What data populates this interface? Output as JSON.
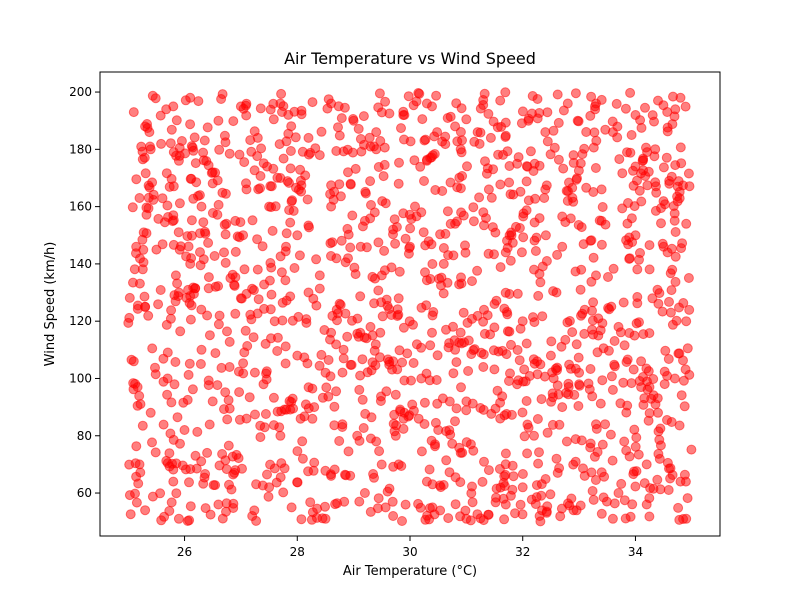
{
  "chart_data": {
    "type": "scatter",
    "title": "Air Temperature vs Wind Speed",
    "xlabel": "Air Temperature (°C)",
    "ylabel": "Wind Speed (km/h)",
    "xlim": [
      24.5,
      35.5
    ],
    "ylim": [
      45,
      207
    ],
    "xticks": [
      26,
      28,
      30,
      32,
      34
    ],
    "yticks": [
      60,
      80,
      100,
      120,
      140,
      160,
      180,
      200
    ],
    "grid": false,
    "marker_color": "#ff0000",
    "marker_alpha": 0.5,
    "series": [
      {
        "x_range": [
          25,
          35
        ],
        "y_range": [
          50,
          200
        ],
        "points": [
          [
            25.1,
            193.0
          ],
          [
            25.3,
            188.0
          ],
          [
            25.8,
            195.0
          ],
          [
            26.1,
            198.0
          ],
          [
            26.6,
            190.0
          ],
          [
            27.0,
            195.0
          ],
          [
            27.3,
            184.0
          ],
          [
            27.7,
            196.0
          ],
          [
            28.2,
            184.0
          ],
          [
            28.6,
            196.0
          ],
          [
            29.0,
            190.0
          ],
          [
            29.4,
            186.0
          ],
          [
            29.9,
            192.0
          ],
          [
            30.3,
            196.0
          ],
          [
            30.8,
            188.0
          ],
          [
            31.2,
            186.0
          ],
          [
            31.6,
            197.0
          ],
          [
            32.1,
            190.0
          ],
          [
            32.4,
            186.0
          ],
          [
            32.8,
            196.0
          ],
          [
            33.3,
            196.0
          ],
          [
            33.6,
            186.0
          ],
          [
            34.0,
            192.0
          ],
          [
            34.4,
            197.0
          ],
          [
            34.8,
            198.0
          ],
          [
            25.4,
            180.0
          ],
          [
            25.9,
            176.0
          ],
          [
            26.5,
            172.0
          ],
          [
            27.1,
            166.0
          ],
          [
            27.7,
            170.0
          ],
          [
            28.4,
            178.0
          ],
          [
            28.9,
            172.0
          ],
          [
            29.4,
            180.0
          ],
          [
            29.8,
            168.0
          ],
          [
            30.3,
            176.0
          ],
          [
            30.9,
            180.0
          ],
          [
            31.4,
            166.0
          ],
          [
            31.9,
            175.0
          ],
          [
            32.4,
            166.0
          ],
          [
            32.9,
            178.0
          ],
          [
            33.4,
            166.0
          ],
          [
            34.0,
            174.0
          ],
          [
            34.6,
            168.0
          ],
          [
            25.2,
            163.0
          ],
          [
            25.8,
            157.0
          ],
          [
            26.3,
            160.0
          ],
          [
            26.9,
            155.0
          ],
          [
            27.5,
            160.0
          ],
          [
            28.0,
            150.0
          ],
          [
            28.6,
            160.0
          ],
          [
            29.2,
            155.0
          ],
          [
            29.7,
            152.0
          ],
          [
            30.2,
            158.0
          ],
          [
            30.8,
            154.0
          ],
          [
            31.3,
            158.0
          ],
          [
            31.8,
            150.0
          ],
          [
            32.3,
            156.0
          ],
          [
            32.8,
            162.0
          ],
          [
            33.4,
            155.0
          ],
          [
            34.0,
            150.0
          ],
          [
            34.9,
            154.0
          ],
          [
            25.5,
            145.0
          ],
          [
            26.1,
            140.0
          ],
          [
            26.7,
            144.0
          ],
          [
            27.3,
            138.0
          ],
          [
            27.8,
            146.0
          ],
          [
            28.4,
            136.0
          ],
          [
            28.9,
            142.0
          ],
          [
            29.5,
            136.0
          ],
          [
            30.0,
            146.0
          ],
          [
            30.6,
            140.0
          ],
          [
            31.1,
            134.0
          ],
          [
            31.7,
            144.0
          ],
          [
            32.2,
            138.0
          ],
          [
            32.7,
            146.0
          ],
          [
            33.3,
            136.0
          ],
          [
            33.9,
            142.0
          ],
          [
            34.5,
            146.0
          ],
          [
            25.3,
            125.0
          ],
          [
            25.9,
            130.0
          ],
          [
            26.4,
            122.0
          ],
          [
            27.0,
            128.0
          ],
          [
            27.6,
            120.0
          ],
          [
            28.2,
            130.0
          ],
          [
            28.7,
            124.0
          ],
          [
            29.3,
            118.0
          ],
          [
            29.8,
            128.0
          ],
          [
            30.4,
            122.0
          ],
          [
            30.9,
            116.0
          ],
          [
            31.5,
            126.0
          ],
          [
            32.0,
            120.0
          ],
          [
            32.6,
            130.0
          ],
          [
            33.1,
            124.0
          ],
          [
            33.7,
            118.0
          ],
          [
            34.3,
            128.0
          ],
          [
            34.9,
            120.0
          ],
          [
            25.1,
            106.0
          ],
          [
            25.7,
            100.0
          ],
          [
            26.3,
            110.0
          ],
          [
            26.8,
            104.0
          ],
          [
            27.4,
            98.0
          ],
          [
            28.0,
            108.0
          ],
          [
            28.5,
            102.0
          ],
          [
            29.1,
            96.0
          ],
          [
            29.7,
            106.0
          ],
          [
            30.2,
            100.0
          ],
          [
            30.8,
            110.0
          ],
          [
            31.3,
            104.0
          ],
          [
            31.9,
            98.0
          ],
          [
            32.5,
            108.0
          ],
          [
            33.0,
            102.0
          ],
          [
            33.6,
            96.0
          ],
          [
            34.1,
            106.0
          ],
          [
            34.7,
            100.0
          ],
          [
            25.4,
            88.0
          ],
          [
            26.0,
            82.0
          ],
          [
            26.5,
            92.0
          ],
          [
            27.1,
            86.0
          ],
          [
            27.7,
            80.0
          ],
          [
            28.3,
            90.0
          ],
          [
            28.8,
            84.0
          ],
          [
            29.4,
            78.0
          ],
          [
            29.9,
            88.0
          ],
          [
            30.5,
            82.0
          ],
          [
            31.0,
            92.0
          ],
          [
            31.6,
            86.0
          ],
          [
            32.2,
            80.0
          ],
          [
            32.7,
            90.0
          ],
          [
            33.3,
            84.0
          ],
          [
            33.8,
            78.0
          ],
          [
            34.4,
            88.0
          ],
          [
            25.2,
            70.0
          ],
          [
            25.8,
            64.0
          ],
          [
            26.4,
            74.0
          ],
          [
            26.9,
            68.0
          ],
          [
            27.5,
            62.0
          ],
          [
            28.1,
            72.0
          ],
          [
            28.6,
            66.0
          ],
          [
            29.2,
            60.0
          ],
          [
            29.8,
            70.0
          ],
          [
            30.3,
            64.0
          ],
          [
            30.9,
            74.0
          ],
          [
            31.4,
            68.0
          ],
          [
            32.0,
            62.0
          ],
          [
            32.6,
            72.0
          ],
          [
            33.1,
            66.0
          ],
          [
            33.7,
            60.0
          ],
          [
            34.2,
            70.0
          ],
          [
            34.8,
            64.0
          ],
          [
            25.3,
            54.0
          ],
          [
            25.9,
            51.0
          ],
          [
            26.6,
            56.0
          ],
          [
            27.2,
            52.0
          ],
          [
            27.9,
            55.0
          ],
          [
            28.5,
            51.0
          ],
          [
            29.1,
            57.0
          ],
          [
            29.7,
            52.0
          ],
          [
            30.4,
            55.0
          ],
          [
            31.0,
            51.0
          ],
          [
            31.7,
            56.0
          ],
          [
            32.3,
            52.0
          ],
          [
            32.9,
            54.0
          ],
          [
            33.6,
            51.0
          ],
          [
            34.2,
            56.0
          ],
          [
            34.9,
            51.0
          ]
        ]
      }
    ]
  }
}
